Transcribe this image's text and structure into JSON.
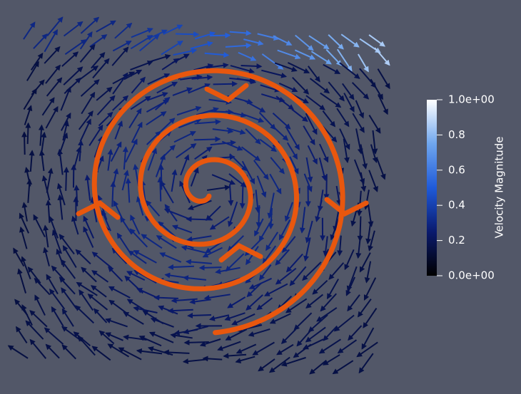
{
  "colorbar": {
    "title": "Velocity Magnitude",
    "range": [
      0,
      1
    ],
    "ticks": [
      {
        "value": 0,
        "label": "0.0e+00"
      },
      0.2,
      0.4,
      0.6,
      0.8,
      {
        "value": 1,
        "label": "1.0e+00"
      }
    ],
    "colors": [
      "#000000",
      "#0a1a6e",
      "#1f5ad9",
      "#6fa6ee",
      "#ffffff"
    ]
  }
}
